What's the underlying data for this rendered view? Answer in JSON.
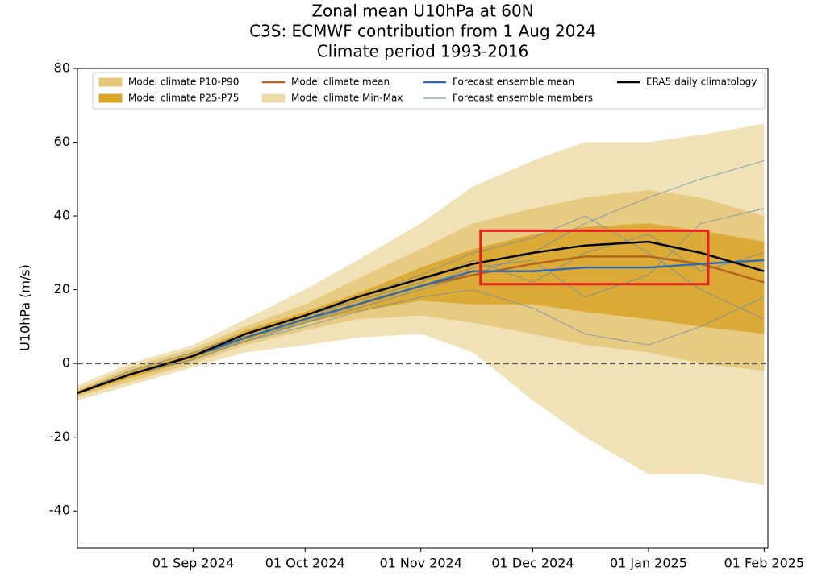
{
  "chart_data": {
    "type": "line",
    "title": [
      "Zonal mean U10hPa at 60N",
      "C3S: ECMWF contribution from 1 Aug 2024",
      "Climate period 1993-2016"
    ],
    "y_label": "U10hPa (m/s)",
    "x": [
      "2024-08-01",
      "2024-08-15",
      "2024-09-01",
      "2024-09-15",
      "2024-10-01",
      "2024-10-15",
      "2024-11-01",
      "2024-11-15",
      "2024-12-01",
      "2024-12-15",
      "2025-01-01",
      "2025-01-15",
      "2025-02-01"
    ],
    "xlim": [
      "2024-08-01",
      "2025-02-02"
    ],
    "xticks": [
      {
        "value": "2024-09-01",
        "label": "01 Sep 2024"
      },
      {
        "value": "2024-10-01",
        "label": "01 Oct 2024"
      },
      {
        "value": "2024-11-01",
        "label": "01 Nov 2024"
      },
      {
        "value": "2024-12-01",
        "label": "01 Dec 2024"
      },
      {
        "value": "2025-01-01",
        "label": "01 Jan 2025"
      },
      {
        "value": "2025-02-01",
        "label": "01 Feb 2025"
      }
    ],
    "ylim": [
      -50,
      80
    ],
    "yticks": [
      -40,
      -20,
      0,
      20,
      40,
      60,
      80
    ],
    "zero_line": true,
    "bands": [
      {
        "name": "Model climate Min-Max",
        "color": "#efdcaa",
        "lower": [
          -10,
          -6,
          -1,
          3,
          5,
          7,
          8,
          3,
          -10,
          -20,
          -30,
          -30,
          -33
        ],
        "upper": [
          -6,
          0,
          5,
          12,
          20,
          28,
          38,
          48,
          55,
          60,
          60,
          62,
          65
        ]
      },
      {
        "name": "Model climate P10-P90",
        "color": "#e6c77a",
        "lower": [
          -9,
          -5,
          0,
          5,
          9,
          12,
          13,
          11,
          8,
          5,
          3,
          0,
          -2
        ],
        "upper": [
          -7,
          -1,
          4,
          10,
          16,
          23,
          31,
          38,
          42,
          45,
          47,
          45,
          40
        ]
      },
      {
        "name": "Model climate P25-P75",
        "color": "#d9a62a",
        "lower": [
          -8.5,
          -4,
          1,
          6,
          11,
          14,
          17,
          16,
          16,
          14,
          12,
          10,
          8
        ],
        "upper": [
          -7.5,
          -2,
          3,
          9,
          14,
          19,
          26,
          31,
          35,
          37,
          38,
          36,
          33
        ]
      }
    ],
    "members": {
      "name": "Forecast ensemble members",
      "color": "#4f86bd",
      "values": [
        [
          -8,
          -3,
          2,
          7,
          11,
          15,
          20,
          24,
          30,
          38,
          45,
          50,
          55
        ],
        [
          -8,
          -3,
          2,
          6,
          10,
          14,
          18,
          20,
          15,
          8,
          5,
          10,
          18
        ],
        [
          -8,
          -2,
          3,
          8,
          13,
          17,
          22,
          28,
          22,
          30,
          35,
          25,
          30
        ],
        [
          -8,
          -3,
          1,
          6,
          11,
          16,
          21,
          26,
          28,
          18,
          24,
          38,
          42
        ],
        [
          -8,
          -3,
          2,
          7,
          12,
          18,
          24,
          30,
          34,
          40,
          30,
          20,
          12
        ]
      ]
    },
    "series": [
      {
        "name": "Model climate mean",
        "color": "#b5651d",
        "values": [
          -8,
          -3,
          2,
          7,
          12,
          16,
          21,
          24,
          27,
          29,
          29,
          27,
          22
        ]
      },
      {
        "name": "Forecast ensemble mean",
        "color": "#2f6db0",
        "values": [
          -8,
          -3,
          2,
          7,
          12,
          16,
          21,
          25,
          25,
          26,
          26,
          27,
          28
        ]
      },
      {
        "name": "ERA5 daily climatology",
        "color": "#000000",
        "values": [
          -8,
          -3,
          2,
          8,
          13,
          18,
          23,
          27,
          30,
          32,
          33,
          30,
          25
        ]
      }
    ],
    "highlight": {
      "x": [
        "2024-11-17",
        "2025-01-17"
      ],
      "y": [
        21.5,
        36
      ],
      "color": "#e8201f"
    }
  }
}
